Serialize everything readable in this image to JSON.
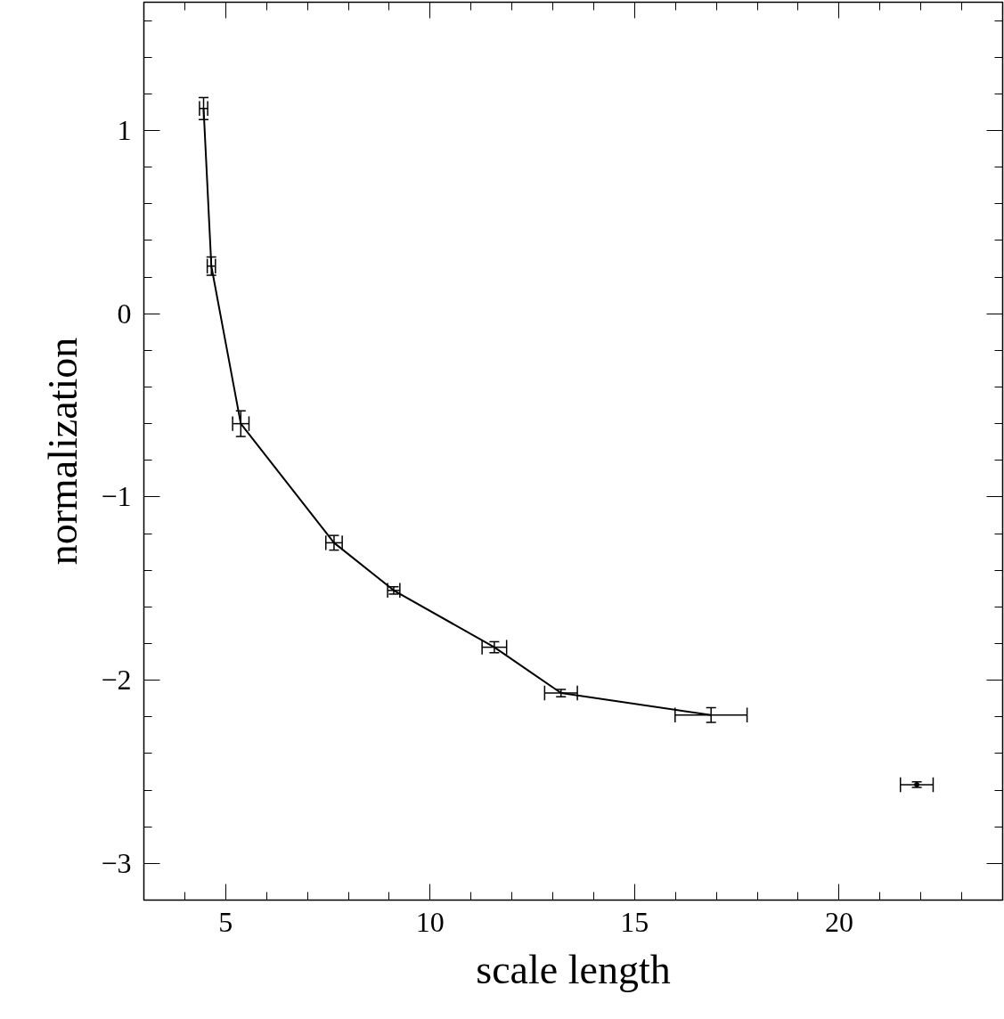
{
  "chart_data": {
    "type": "line",
    "xlabel": "scale length",
    "ylabel": "normalization",
    "xlim": [
      3,
      24
    ],
    "ylim": [
      -3.2,
      1.7
    ],
    "xticks": [
      {
        "value": 3,
        "label": null
      },
      {
        "value": 4,
        "label": null
      },
      5,
      {
        "value": 6,
        "label": null
      },
      {
        "value": 7,
        "label": null
      },
      {
        "value": 8,
        "label": null
      },
      {
        "value": 9,
        "label": null
      },
      10,
      {
        "value": 11,
        "label": null
      },
      {
        "value": 12,
        "label": null
      },
      {
        "value": 13,
        "label": null
      },
      {
        "value": 14,
        "label": null
      },
      15,
      {
        "value": 16,
        "label": null
      },
      {
        "value": 17,
        "label": null
      },
      {
        "value": 18,
        "label": null
      },
      {
        "value": 19,
        "label": null
      },
      20,
      {
        "value": 21,
        "label": null
      },
      {
        "value": 22,
        "label": null
      },
      {
        "value": 23,
        "label": null
      }
    ],
    "yticks": [
      {
        "value": -3.2,
        "label": null
      },
      {
        "value": -3,
        "label": "−3"
      },
      {
        "value": -2.8,
        "label": null
      },
      {
        "value": -2.6,
        "label": null
      },
      {
        "value": -2.4,
        "label": null
      },
      {
        "value": -2.2,
        "label": null
      },
      {
        "value": -2,
        "label": "−2"
      },
      {
        "value": -1.8,
        "label": null
      },
      {
        "value": -1.6,
        "label": null
      },
      {
        "value": -1.4,
        "label": null
      },
      {
        "value": -1.2,
        "label": null
      },
      {
        "value": -1,
        "label": "−1"
      },
      {
        "value": -0.8,
        "label": null
      },
      {
        "value": -0.6,
        "label": null
      },
      {
        "value": -0.4,
        "label": null
      },
      {
        "value": -0.2,
        "label": null
      },
      0,
      {
        "value": 0.2,
        "label": null
      },
      {
        "value": 0.4,
        "label": null
      },
      {
        "value": 0.6,
        "label": null
      },
      {
        "value": 0.8,
        "label": null
      },
      1,
      {
        "value": 1.2,
        "label": null
      },
      {
        "value": 1.4,
        "label": null
      },
      {
        "value": 1.6,
        "label": null
      }
    ],
    "grid": false,
    "marker": "none",
    "line_style": "solid",
    "series": [
      {
        "color": "#000000",
        "x": [
          4.46,
          4.65,
          5.37,
          7.65,
          9.11,
          11.57,
          13.2,
          16.87
        ],
        "values": [
          1.12,
          0.26,
          -0.6,
          -1.25,
          -1.51,
          -1.82,
          -2.07,
          -2.19
        ],
        "errors": [
          0.06,
          0.05,
          0.07,
          0.04,
          0.02,
          0.03,
          0.02,
          0.04
        ],
        "xerrors": [
          0.1,
          0.1,
          0.2,
          0.2,
          0.15,
          0.3,
          0.4,
          0.88
        ]
      },
      {
        "type": "scatter",
        "color": "#000000",
        "x": [
          21.9
        ],
        "values": [
          -2.57
        ],
        "errors": [
          0.015
        ],
        "xerrors": [
          0.4
        ]
      }
    ]
  }
}
